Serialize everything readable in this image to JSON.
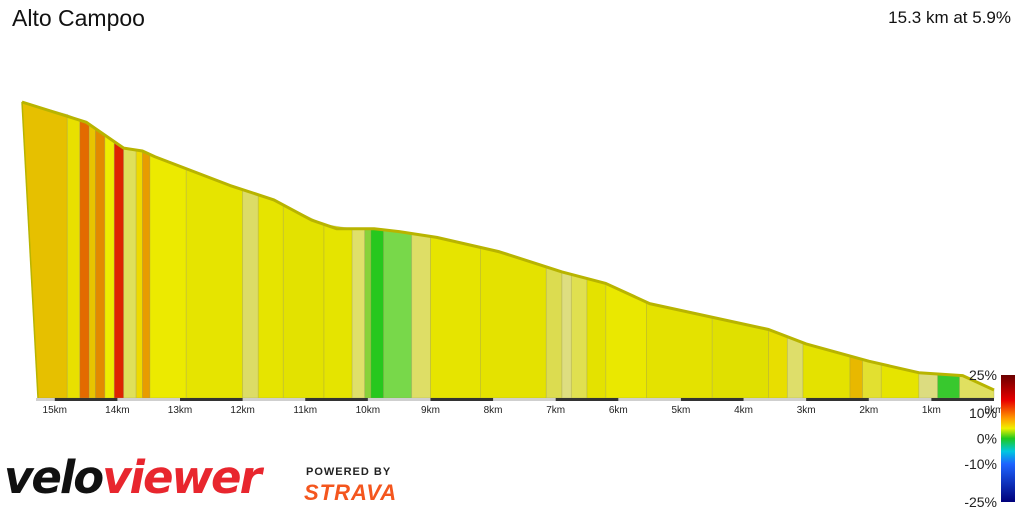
{
  "header": {
    "title": "Alto Campoo",
    "summary": "15.3 km at 5.9%"
  },
  "branding": {
    "logo_part1": "velo",
    "logo_part2": "viewer",
    "powered_by": "POWERED BY",
    "powered_brand": "STRAVA"
  },
  "chart_data": {
    "type": "area",
    "title": "Alto Campoo",
    "subtitle": "15.3 km at 5.9%",
    "x_axis": {
      "reversed": true,
      "min": 0,
      "max": 15.3,
      "tick_values": [
        15,
        14,
        13,
        12,
        11,
        10,
        9,
        8,
        7,
        6,
        5,
        4,
        3,
        2,
        1,
        0
      ],
      "tick_labels": [
        "15km",
        "14km",
        "13km",
        "12km",
        "11km",
        "10km",
        "9km",
        "8km",
        "7km",
        "6km",
        "5km",
        "4km",
        "3km",
        "2km",
        "1km",
        "0km"
      ]
    },
    "elevation_relative": {
      "description": "profile line, relative height 0 (bottom) to 1 (top)",
      "points": [
        {
          "km": 15.3,
          "h": 1.0
        },
        {
          "km": 14.5,
          "h": 0.93
        },
        {
          "km": 13.9,
          "h": 0.84
        },
        {
          "km": 13.6,
          "h": 0.83
        },
        {
          "km": 13.4,
          "h": 0.81
        },
        {
          "km": 12.2,
          "h": 0.71
        },
        {
          "km": 11.5,
          "h": 0.66
        },
        {
          "km": 10.9,
          "h": 0.59
        },
        {
          "km": 10.5,
          "h": 0.56
        },
        {
          "km": 9.9,
          "h": 0.56
        },
        {
          "km": 9.5,
          "h": 0.55
        },
        {
          "km": 8.9,
          "h": 0.53
        },
        {
          "km": 7.9,
          "h": 0.48
        },
        {
          "km": 6.9,
          "h": 0.41
        },
        {
          "km": 6.2,
          "h": 0.37
        },
        {
          "km": 5.5,
          "h": 0.3
        },
        {
          "km": 3.6,
          "h": 0.21
        },
        {
          "km": 3.0,
          "h": 0.16
        },
        {
          "km": 2.0,
          "h": 0.1
        },
        {
          "km": 1.2,
          "h": 0.06
        },
        {
          "km": 0.5,
          "h": 0.05
        },
        {
          "km": 0.0,
          "h": 0.0
        }
      ]
    },
    "segments": [
      {
        "from": 15.3,
        "to": 14.8,
        "color": "#e6c000"
      },
      {
        "from": 14.8,
        "to": 14.6,
        "color": "#e8e000"
      },
      {
        "from": 14.6,
        "to": 14.45,
        "color": "#e36a00"
      },
      {
        "from": 14.45,
        "to": 14.35,
        "color": "#e8c400"
      },
      {
        "from": 14.35,
        "to": 14.2,
        "color": "#e38a00"
      },
      {
        "from": 14.2,
        "to": 14.05,
        "color": "#eeed00"
      },
      {
        "from": 14.05,
        "to": 13.9,
        "color": "#dd2400"
      },
      {
        "from": 13.9,
        "to": 13.7,
        "color": "#dfe05a"
      },
      {
        "from": 13.7,
        "to": 13.6,
        "color": "#eeda00"
      },
      {
        "from": 13.6,
        "to": 13.48,
        "color": "#e89c00"
      },
      {
        "from": 13.48,
        "to": 12.9,
        "color": "#ecea00"
      },
      {
        "from": 12.9,
        "to": 12.0,
        "color": "#e6e400"
      },
      {
        "from": 12.0,
        "to": 11.75,
        "color": "#dcdc66"
      },
      {
        "from": 11.75,
        "to": 11.35,
        "color": "#e6e400"
      },
      {
        "from": 11.35,
        "to": 10.7,
        "color": "#e3e200"
      },
      {
        "from": 10.7,
        "to": 10.25,
        "color": "#e5e400"
      },
      {
        "from": 10.25,
        "to": 10.05,
        "color": "#dfe06a"
      },
      {
        "from": 10.05,
        "to": 9.95,
        "color": "#88d23a"
      },
      {
        "from": 9.95,
        "to": 9.75,
        "color": "#26c81e"
      },
      {
        "from": 9.75,
        "to": 9.3,
        "color": "#78d84a"
      },
      {
        "from": 9.3,
        "to": 9.0,
        "color": "#dede66"
      },
      {
        "from": 9.0,
        "to": 8.2,
        "color": "#e6e400"
      },
      {
        "from": 8.2,
        "to": 7.15,
        "color": "#e4e200"
      },
      {
        "from": 7.15,
        "to": 6.9,
        "color": "#dcdc50"
      },
      {
        "from": 6.9,
        "to": 6.75,
        "color": "#dede80"
      },
      {
        "from": 6.75,
        "to": 6.5,
        "color": "#e0e050"
      },
      {
        "from": 6.5,
        "to": 6.2,
        "color": "#e4e200"
      },
      {
        "from": 6.2,
        "to": 5.55,
        "color": "#eae800"
      },
      {
        "from": 5.55,
        "to": 4.5,
        "color": "#e4e200"
      },
      {
        "from": 4.5,
        "to": 3.6,
        "color": "#e0e000"
      },
      {
        "from": 3.6,
        "to": 3.3,
        "color": "#e8de00"
      },
      {
        "from": 3.3,
        "to": 3.05,
        "color": "#dede6a"
      },
      {
        "from": 3.05,
        "to": 2.3,
        "color": "#e4e200"
      },
      {
        "from": 2.3,
        "to": 2.1,
        "color": "#e8b800"
      },
      {
        "from": 2.1,
        "to": 1.8,
        "color": "#e2e030"
      },
      {
        "from": 1.8,
        "to": 1.2,
        "color": "#e6e400"
      },
      {
        "from": 1.2,
        "to": 0.9,
        "color": "#dcdc80"
      },
      {
        "from": 0.9,
        "to": 0.55,
        "color": "#38c82e"
      },
      {
        "from": 0.55,
        "to": 0.0,
        "color": "#e0e060"
      }
    ],
    "gradient_legend": {
      "labels": [
        "25%",
        "10%",
        "0%",
        "-10%",
        "-25%"
      ],
      "stops": [
        {
          "value": 25,
          "color": "#6a0000"
        },
        {
          "value": 15,
          "color": "#e80000"
        },
        {
          "value": 8,
          "color": "#ff9900"
        },
        {
          "value": 4,
          "color": "#f0f000"
        },
        {
          "value": 0,
          "color": "#1ec81e"
        },
        {
          "value": -5,
          "color": "#00c8e0"
        },
        {
          "value": -10,
          "color": "#1e64ff"
        },
        {
          "value": -25,
          "color": "#00007a"
        }
      ]
    },
    "legend_position": "bottom-right"
  }
}
